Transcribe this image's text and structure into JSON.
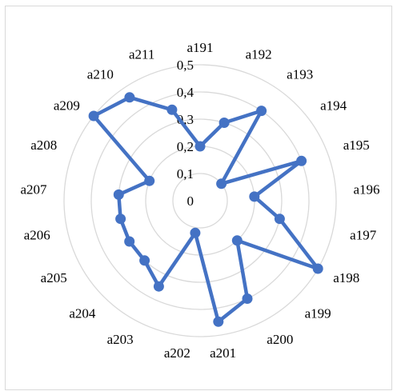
{
  "chart_data": {
    "type": "radar",
    "title": "",
    "categories": [
      "a191",
      "a192",
      "a193",
      "a194",
      "a195",
      "a196",
      "a197",
      "a198",
      "a199",
      "a200",
      "a201",
      "a202",
      "a203",
      "a204",
      "a205",
      "a206",
      "a207",
      "a208",
      "a209",
      "a210",
      "a211"
    ],
    "series": [
      {
        "values": [
          0.2,
          0.3,
          0.4,
          0.1,
          0.4,
          0.2,
          0.3,
          0.5,
          0.2,
          0.4,
          0.45,
          0.12,
          0.35,
          0.3,
          0.3,
          0.3,
          0.3,
          0.2,
          0.5,
          0.46,
          0.35
        ],
        "color": "#4472C4"
      }
    ],
    "rlim": [
      0,
      0.5
    ],
    "ticks": [
      "0",
      "0,1",
      "0,2",
      "0,3",
      "0,4",
      "0,5"
    ],
    "grid": true,
    "legend": "none"
  }
}
